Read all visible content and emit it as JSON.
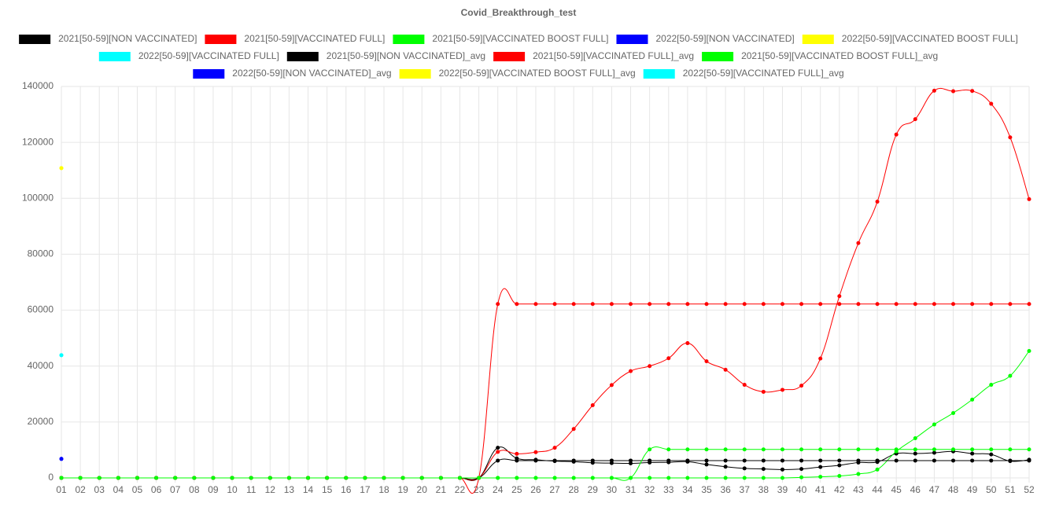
{
  "chart_data": {
    "type": "line",
    "title": "Covid_Breakthrough_test",
    "categories": [
      "01",
      "02",
      "03",
      "04",
      "05",
      "06",
      "07",
      "08",
      "09",
      "10",
      "11",
      "12",
      "13",
      "14",
      "15",
      "16",
      "17",
      "18",
      "19",
      "20",
      "21",
      "22",
      "23",
      "24",
      "25",
      "26",
      "27",
      "28",
      "29",
      "30",
      "31",
      "32",
      "33",
      "34",
      "35",
      "36",
      "37",
      "38",
      "39",
      "40",
      "41",
      "42",
      "43",
      "44",
      "45",
      "46",
      "47",
      "48",
      "49",
      "50",
      "51",
      "52"
    ],
    "ylim": [
      0,
      140000
    ],
    "yticks": [
      0,
      20000,
      40000,
      60000,
      80000,
      100000,
      120000,
      140000
    ],
    "grid": true,
    "legend": "top",
    "series": [
      {
        "name": "2021[50-59][NON VACCINATED]",
        "color": "#000000",
        "values": [
          0,
          0,
          0,
          0,
          0,
          0,
          0,
          0,
          0,
          0,
          0,
          0,
          0,
          0,
          0,
          0,
          0,
          0,
          0,
          0,
          0,
          0,
          0,
          10800,
          7000,
          6500,
          6000,
          5800,
          5400,
          5300,
          5200,
          5500,
          5600,
          5800,
          4800,
          4000,
          3400,
          3200,
          3000,
          3200,
          3900,
          4500,
          5500,
          5700,
          8700,
          8700,
          9000,
          9500,
          8700,
          8400,
          6000,
          6500
        ]
      },
      {
        "name": "2021[50-59][VACCINATED FULL]",
        "color": "#ff0000",
        "values": [
          0,
          0,
          0,
          0,
          0,
          0,
          0,
          0,
          0,
          0,
          0,
          0,
          0,
          0,
          0,
          0,
          0,
          0,
          0,
          0,
          0,
          0,
          0,
          9300,
          8600,
          9200,
          10800,
          17500,
          26000,
          33200,
          38200,
          40000,
          42800,
          48200,
          41700,
          38700,
          33300,
          30800,
          31500,
          33000,
          42700,
          65000,
          84000,
          98800,
          122800,
          128300,
          138500,
          138300,
          138400,
          133800,
          121800,
          99700
        ]
      },
      {
        "name": "2021[50-59][VACCINATED BOOST FULL]",
        "color": "#00ff00",
        "values": [
          0,
          0,
          0,
          0,
          0,
          0,
          0,
          0,
          0,
          0,
          0,
          0,
          0,
          0,
          0,
          0,
          0,
          0,
          0,
          0,
          0,
          0,
          0,
          0,
          0,
          0,
          0,
          0,
          0,
          0,
          0,
          0,
          0,
          0,
          0,
          0,
          0,
          0,
          0,
          200,
          400,
          700,
          1400,
          3000,
          9500,
          14200,
          19100,
          23200,
          28000,
          33300,
          36500,
          45400
        ]
      },
      {
        "name": "2022[50-59][NON VACCINATED]",
        "color": "#0000ff",
        "values": [
          6800,
          null,
          null,
          null,
          null,
          null,
          null,
          null,
          null,
          null,
          null,
          null,
          null,
          null,
          null,
          null,
          null,
          null,
          null,
          null,
          null,
          null,
          null,
          null,
          null,
          null,
          null,
          null,
          null,
          null,
          null,
          null,
          null,
          null,
          null,
          null,
          null,
          null,
          null,
          null,
          null,
          null,
          null,
          null,
          null,
          null,
          null,
          null,
          null,
          null,
          null,
          null
        ]
      },
      {
        "name": "2022[50-59][VACCINATED BOOST FULL]",
        "color": "#ffff00",
        "values": [
          110800,
          null,
          null,
          null,
          null,
          null,
          null,
          null,
          null,
          null,
          null,
          null,
          null,
          null,
          null,
          null,
          null,
          null,
          null,
          null,
          null,
          null,
          null,
          null,
          null,
          null,
          null,
          null,
          null,
          null,
          null,
          null,
          null,
          null,
          null,
          null,
          null,
          null,
          null,
          null,
          null,
          null,
          null,
          null,
          null,
          null,
          null,
          null,
          null,
          null,
          null,
          null
        ]
      },
      {
        "name": "2022[50-59][VACCINATED FULL]",
        "color": "#00ffff",
        "values": [
          43900,
          null,
          null,
          null,
          null,
          null,
          null,
          null,
          null,
          null,
          null,
          null,
          null,
          null,
          null,
          null,
          null,
          null,
          null,
          null,
          null,
          null,
          null,
          null,
          null,
          null,
          null,
          null,
          null,
          null,
          null,
          null,
          null,
          null,
          null,
          null,
          null,
          null,
          null,
          null,
          null,
          null,
          null,
          null,
          null,
          null,
          null,
          null,
          null,
          null,
          null,
          null
        ]
      },
      {
        "name": "2021[50-59][NON VACCINATED]_avg",
        "color": "#000000",
        "values": [
          0,
          0,
          0,
          0,
          0,
          0,
          0,
          0,
          0,
          0,
          0,
          0,
          0,
          0,
          0,
          0,
          0,
          0,
          0,
          0,
          0,
          0,
          0,
          6200,
          6200,
          6200,
          6200,
          6200,
          6200,
          6200,
          6200,
          6200,
          6200,
          6200,
          6200,
          6200,
          6200,
          6200,
          6200,
          6200,
          6200,
          6200,
          6200,
          6200,
          6200,
          6200,
          6200,
          6200,
          6200,
          6200,
          6200,
          6200
        ]
      },
      {
        "name": "2021[50-59][VACCINATED FULL]_avg",
        "color": "#ff0000",
        "values": [
          0,
          0,
          0,
          0,
          0,
          0,
          0,
          0,
          0,
          0,
          0,
          0,
          0,
          0,
          0,
          0,
          0,
          0,
          0,
          0,
          0,
          0,
          0,
          62200,
          62200,
          62200,
          62200,
          62200,
          62200,
          62200,
          62200,
          62200,
          62200,
          62200,
          62200,
          62200,
          62200,
          62200,
          62200,
          62200,
          62200,
          62200,
          62200,
          62200,
          62200,
          62200,
          62200,
          62200,
          62200,
          62200,
          62200,
          62200
        ]
      },
      {
        "name": "2021[50-59][VACCINATED BOOST FULL]_avg",
        "color": "#00ff00",
        "values": [
          0,
          0,
          0,
          0,
          0,
          0,
          0,
          0,
          0,
          0,
          0,
          0,
          0,
          0,
          0,
          0,
          0,
          0,
          0,
          0,
          0,
          0,
          0,
          0,
          0,
          0,
          0,
          0,
          0,
          0,
          0,
          10200,
          10200,
          10200,
          10200,
          10200,
          10200,
          10200,
          10200,
          10200,
          10200,
          10200,
          10200,
          10200,
          10200,
          10200,
          10200,
          10200,
          10200,
          10200,
          10200,
          10200
        ]
      },
      {
        "name": "2022[50-59][NON VACCINATED]_avg",
        "color": "#0000ff",
        "values": [
          6800,
          null,
          null,
          null,
          null,
          null,
          null,
          null,
          null,
          null,
          null,
          null,
          null,
          null,
          null,
          null,
          null,
          null,
          null,
          null,
          null,
          null,
          null,
          null,
          null,
          null,
          null,
          null,
          null,
          null,
          null,
          null,
          null,
          null,
          null,
          null,
          null,
          null,
          null,
          null,
          null,
          null,
          null,
          null,
          null,
          null,
          null,
          null,
          null,
          null,
          null,
          null
        ]
      },
      {
        "name": "2022[50-59][VACCINATED BOOST FULL]_avg",
        "color": "#ffff00",
        "values": [
          110800,
          null,
          null,
          null,
          null,
          null,
          null,
          null,
          null,
          null,
          null,
          null,
          null,
          null,
          null,
          null,
          null,
          null,
          null,
          null,
          null,
          null,
          null,
          null,
          null,
          null,
          null,
          null,
          null,
          null,
          null,
          null,
          null,
          null,
          null,
          null,
          null,
          null,
          null,
          null,
          null,
          null,
          null,
          null,
          null,
          null,
          null,
          null,
          null,
          null,
          null,
          null
        ]
      },
      {
        "name": "2022[50-59][VACCINATED FULL]_avg",
        "color": "#00ffff",
        "values": [
          43900,
          null,
          null,
          null,
          null,
          null,
          null,
          null,
          null,
          null,
          null,
          null,
          null,
          null,
          null,
          null,
          null,
          null,
          null,
          null,
          null,
          null,
          null,
          null,
          null,
          null,
          null,
          null,
          null,
          null,
          null,
          null,
          null,
          null,
          null,
          null,
          null,
          null,
          null,
          null,
          null,
          null,
          null,
          null,
          null,
          null,
          null,
          null,
          null,
          null,
          null,
          null
        ]
      }
    ]
  }
}
